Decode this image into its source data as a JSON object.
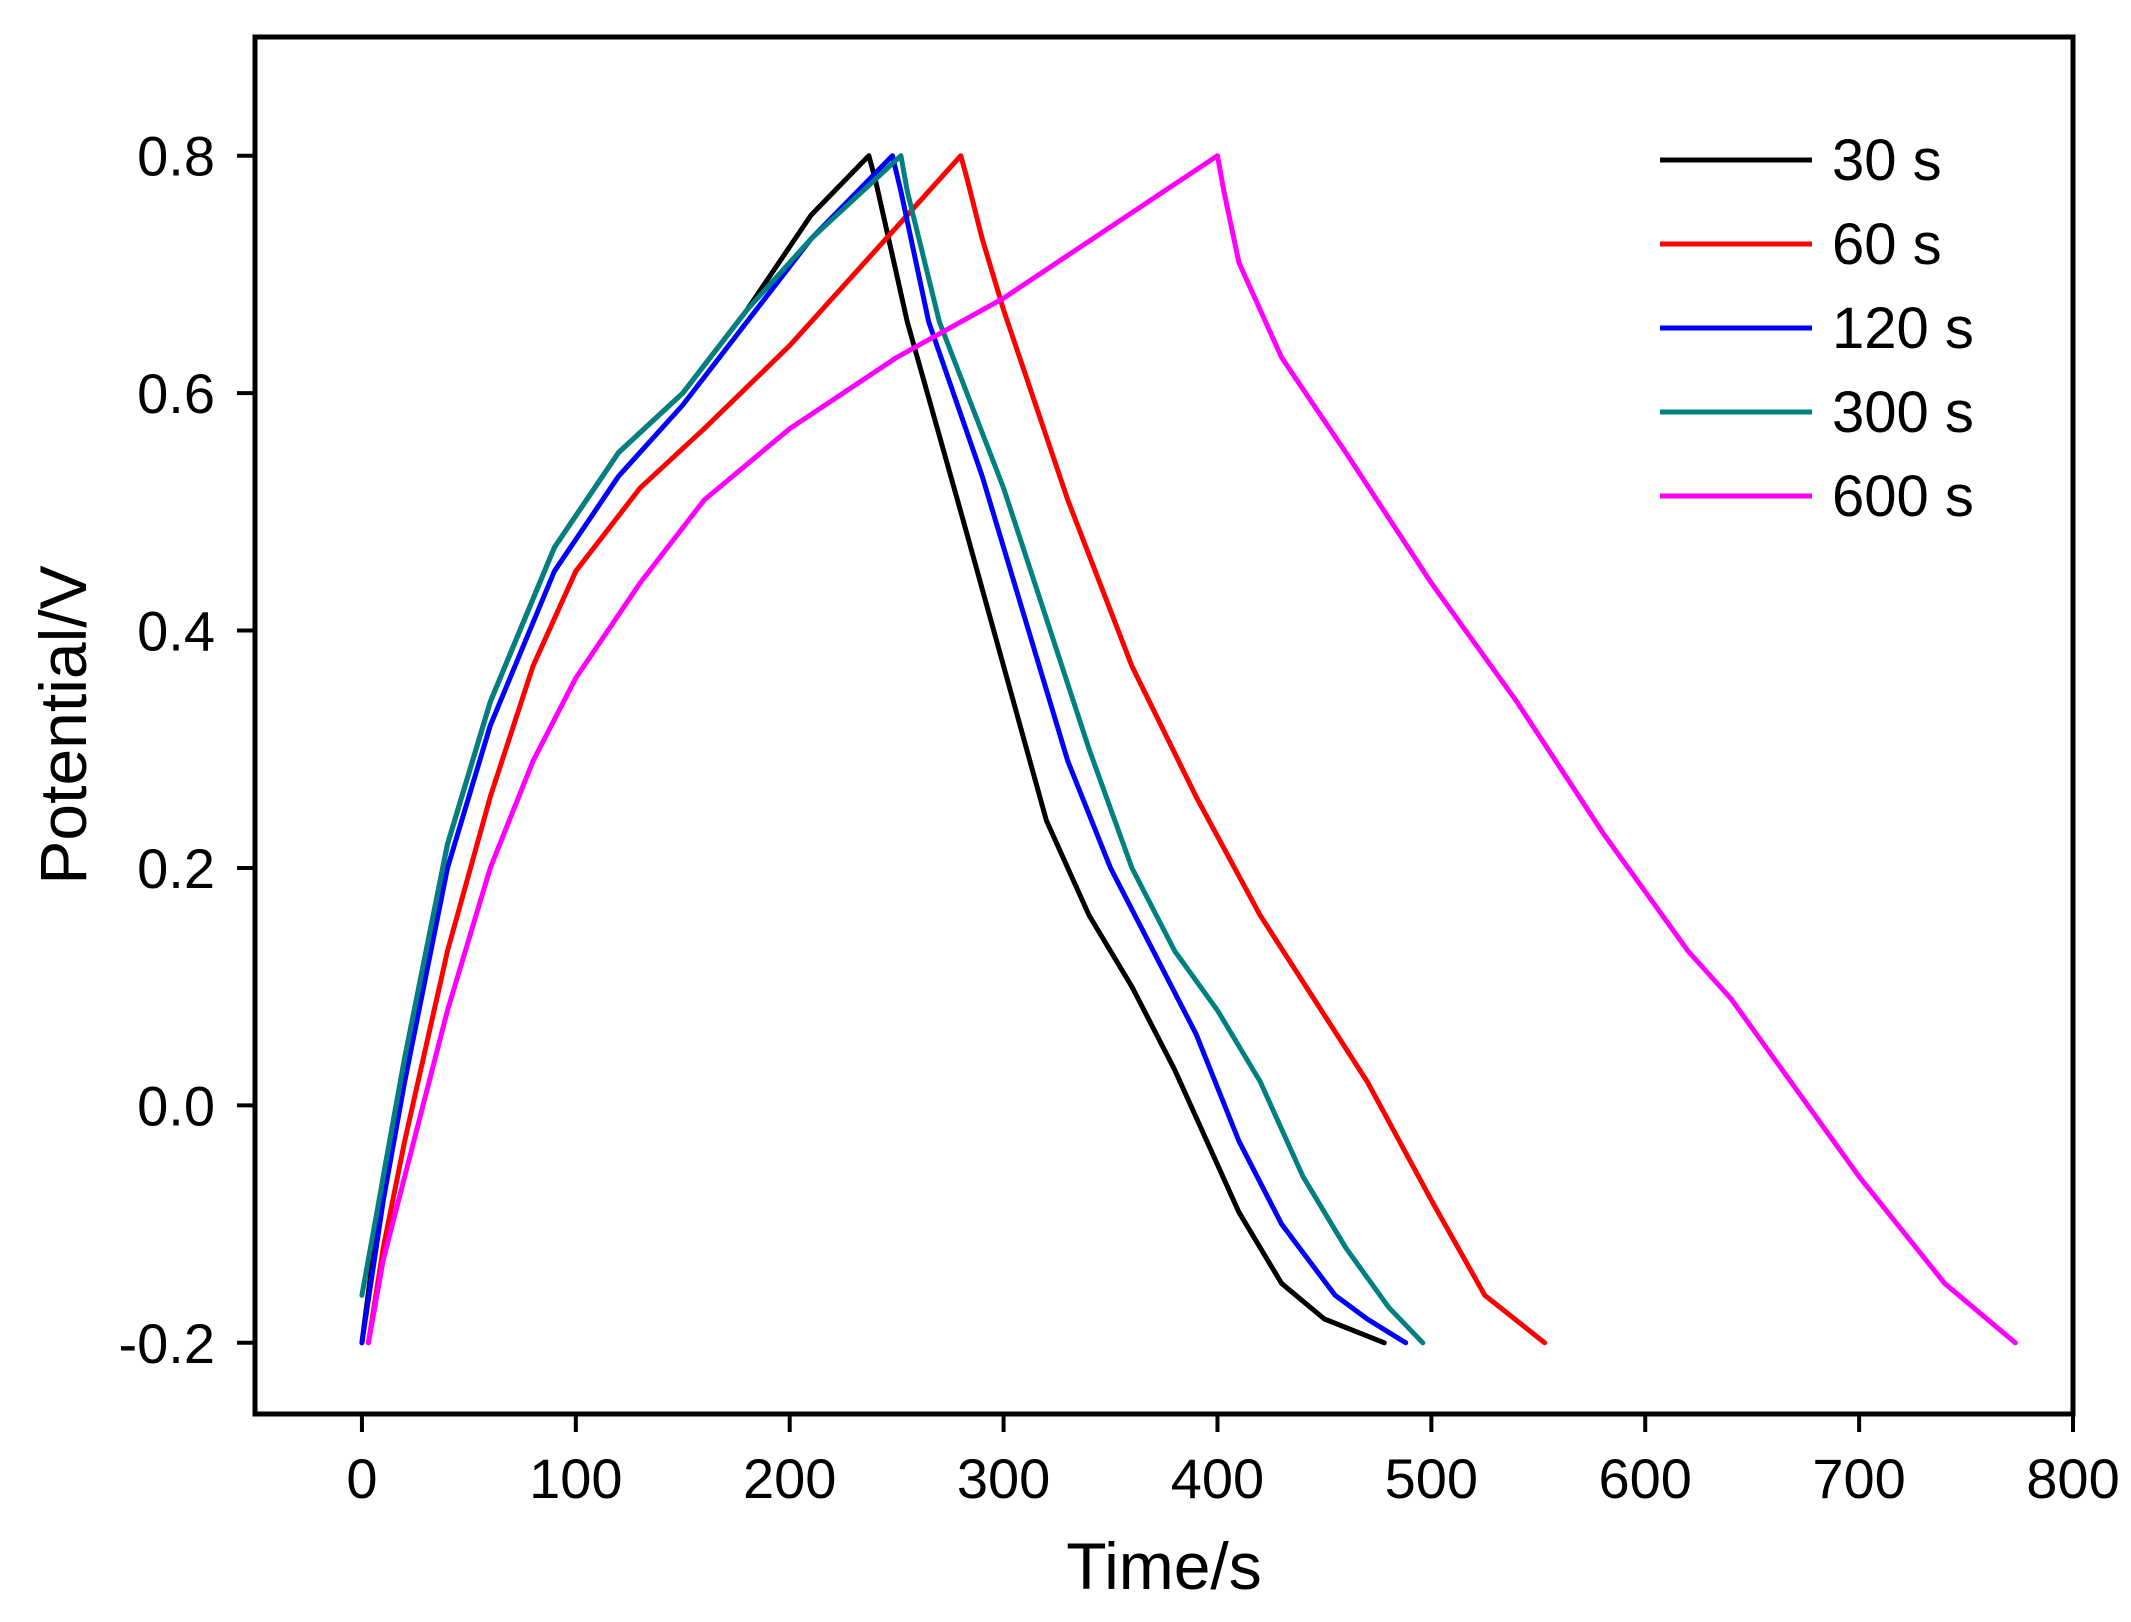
{
  "chart_data": {
    "type": "line",
    "title": "",
    "xlabel": "Time/s",
    "ylabel": "Potential/V",
    "xlim": [
      -50,
      800
    ],
    "ylim": [
      -0.26,
      0.9
    ],
    "xticks": [
      0,
      100,
      200,
      300,
      400,
      500,
      600,
      700,
      800
    ],
    "yticks": [
      -0.2,
      0.0,
      0.2,
      0.4,
      0.6,
      0.8
    ],
    "ytick_labels": [
      "-0.2",
      "0.0",
      "0.2",
      "0.4",
      "0.6",
      "0.8"
    ],
    "xtick_labels": [
      "0",
      "100",
      "200",
      "300",
      "400",
      "500",
      "600",
      "700",
      "800"
    ],
    "grid": false,
    "legend_position": "top-right",
    "series": [
      {
        "name": "30 s",
        "color": "#000000",
        "x": [
          0,
          10,
          20,
          40,
          60,
          90,
          120,
          150,
          180,
          210,
          237,
          240,
          255,
          280,
          300,
          320,
          340,
          360,
          380,
          395,
          410,
          430,
          450,
          478
        ],
        "y": [
          -0.2,
          -0.06,
          0.04,
          0.22,
          0.34,
          0.47,
          0.55,
          0.6,
          0.67,
          0.75,
          0.8,
          0.78,
          0.66,
          0.5,
          0.37,
          0.24,
          0.16,
          0.1,
          0.03,
          -0.03,
          -0.09,
          -0.15,
          -0.18,
          -0.2
        ]
      },
      {
        "name": "60 s",
        "color": "#ff0000",
        "x": [
          3,
          10,
          20,
          40,
          60,
          80,
          100,
          130,
          160,
          200,
          240,
          280,
          283,
          290,
          300,
          330,
          360,
          390,
          420,
          445,
          470,
          500,
          525,
          553
        ],
        "y": [
          -0.2,
          -0.12,
          -0.03,
          0.13,
          0.26,
          0.37,
          0.45,
          0.52,
          0.57,
          0.64,
          0.72,
          0.8,
          0.78,
          0.73,
          0.67,
          0.51,
          0.37,
          0.26,
          0.16,
          0.09,
          0.02,
          -0.08,
          -0.16,
          -0.2
        ]
      },
      {
        "name": "120 s",
        "color": "#0000ff",
        "x": [
          0,
          10,
          20,
          40,
          60,
          90,
          120,
          150,
          180,
          210,
          248,
          252,
          265,
          290,
          310,
          330,
          350,
          370,
          390,
          410,
          430,
          455,
          470,
          488
        ],
        "y": [
          -0.2,
          -0.08,
          0.02,
          0.2,
          0.32,
          0.45,
          0.53,
          0.59,
          0.66,
          0.73,
          0.8,
          0.77,
          0.66,
          0.53,
          0.41,
          0.29,
          0.2,
          0.13,
          0.06,
          -0.03,
          -0.1,
          -0.16,
          -0.18,
          -0.2
        ]
      },
      {
        "name": "300 s",
        "color": "#008080",
        "x": [
          0,
          10,
          20,
          40,
          60,
          90,
          120,
          150,
          180,
          210,
          252,
          255,
          270,
          300,
          320,
          340,
          360,
          380,
          400,
          420,
          440,
          460,
          480,
          496
        ],
        "y": [
          -0.16,
          -0.06,
          0.04,
          0.22,
          0.34,
          0.47,
          0.55,
          0.6,
          0.67,
          0.73,
          0.8,
          0.77,
          0.66,
          0.52,
          0.41,
          0.3,
          0.2,
          0.13,
          0.08,
          0.02,
          -0.06,
          -0.12,
          -0.17,
          -0.2
        ]
      },
      {
        "name": "600 s",
        "color": "#ff00ff",
        "x": [
          3,
          10,
          20,
          40,
          60,
          80,
          100,
          130,
          160,
          200,
          250,
          300,
          350,
          400,
          403,
          410,
          430,
          460,
          500,
          540,
          580,
          620,
          640,
          660,
          700,
          740,
          773
        ],
        "y": [
          -0.2,
          -0.13,
          -0.06,
          0.08,
          0.2,
          0.29,
          0.36,
          0.44,
          0.51,
          0.57,
          0.63,
          0.68,
          0.74,
          0.8,
          0.77,
          0.71,
          0.63,
          0.55,
          0.44,
          0.34,
          0.23,
          0.13,
          0.09,
          0.04,
          -0.06,
          -0.15,
          -0.2
        ]
      }
    ]
  }
}
